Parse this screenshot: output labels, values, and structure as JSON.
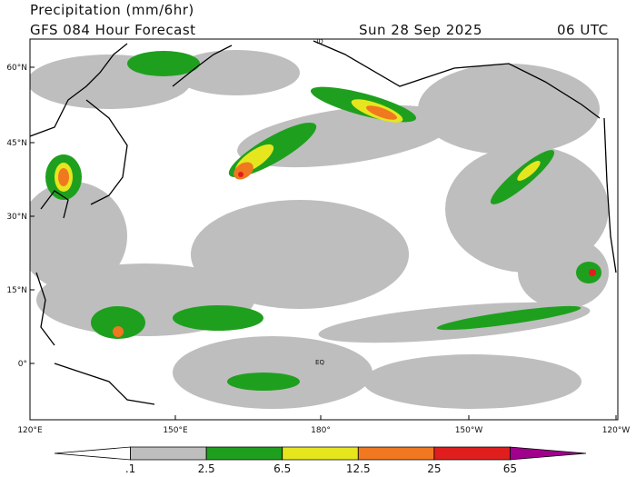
{
  "header": {
    "title": "Precipitation (mm/6hr)",
    "model": "GFS 084 Hour Forecast",
    "date": "Sun 28 Sep 2025",
    "time": "06 UTC"
  },
  "map": {
    "lat_labels": [
      "60°N",
      "45°N",
      "30°N",
      "15°N",
      "0°"
    ],
    "lon_labels": [
      "120°E",
      "150°E",
      "180°",
      "150°W",
      "120°W"
    ],
    "place_labels": [
      "ID",
      "EQ"
    ]
  },
  "colorbar": {
    "labels": [
      ".1",
      "2.5",
      "6.5",
      "12.5",
      "25",
      "65"
    ],
    "colors": [
      "#ffffff",
      "#bebebe",
      "#1ea01e",
      "#e6e61e",
      "#f07820",
      "#e01e1e",
      "#a0008c"
    ]
  }
}
